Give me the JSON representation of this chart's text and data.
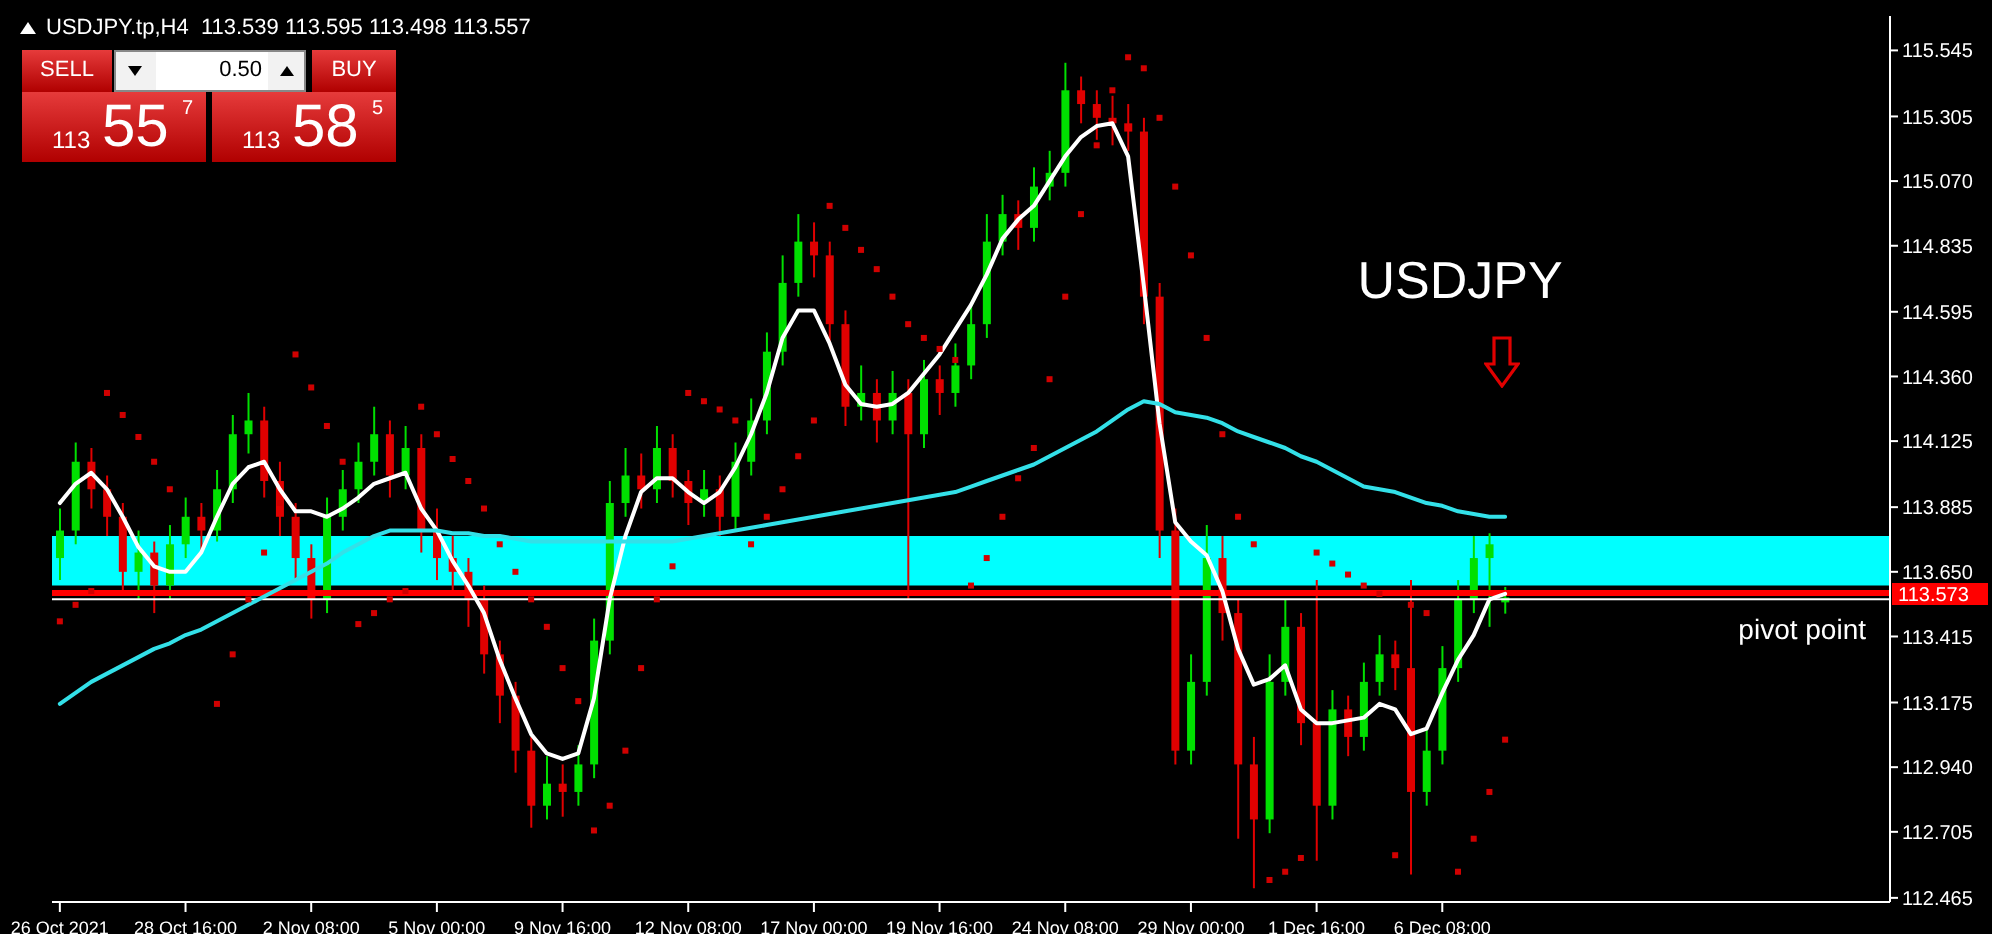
{
  "chart_data": {
    "type": "candlestick",
    "title": "USDJPY.tp,H4  113.539 113.595 113.498 113.557",
    "annotations": [
      "USDJPY",
      "SELL",
      "BUY",
      "0.50",
      "113",
      "55",
      "7",
      "113",
      "58",
      "5"
    ],
    "categories": [
      "26 Oct 2021",
      null,
      null,
      null,
      null,
      null,
      null,
      null,
      "28 Oct 16:00",
      null,
      null,
      null,
      null,
      null,
      null,
      null,
      "2 Nov 08:00",
      null,
      null,
      null,
      null,
      null,
      null,
      null,
      "5 Nov 00:00",
      null,
      null,
      null,
      null,
      null,
      null,
      null,
      "9 Nov 16:00",
      null,
      null,
      null,
      null,
      null,
      null,
      null,
      "12 Nov 08:00",
      null,
      null,
      null,
      null,
      null,
      null,
      null,
      "17 Nov 00:00",
      null,
      null,
      null,
      null,
      null,
      null,
      null,
      "19 Nov 16:00",
      null,
      null,
      null,
      null,
      null,
      null,
      null,
      "24 Nov 08:00",
      null,
      null,
      null,
      null,
      null,
      null,
      null,
      "29 Nov 00:00",
      null,
      null,
      null,
      null,
      null,
      null,
      null,
      "1 Dec 16:00",
      null,
      null,
      null,
      null,
      null,
      null,
      null,
      "6 Dec 08:00",
      null,
      null,
      null,
      null,
      null,
      null,
      null,
      null,
      null,
      null,
      null,
      null,
      null,
      null,
      null,
      null,
      null,
      null,
      null,
      null,
      null,
      null,
      null,
      null,
      null,
      null,
      null,
      null
    ],
    "colors": [
      "#00e000",
      "#00e000",
      "#e00000",
      "#e00000",
      "#e00000",
      "#00e000",
      "#e00000",
      "#00e000",
      "#00e000",
      "#e00000",
      "#00e000",
      "#00e000",
      "#00e000",
      "#e00000",
      "#e00000",
      "#e00000",
      "#e00000",
      "#00e000",
      "#00e000",
      "#00e000",
      "#00e000",
      "#e00000",
      "#00e000",
      "#e00000",
      "#e00000",
      "#e00000",
      "#e00000",
      "#e00000",
      "#e00000",
      "#e00000",
      "#e00000",
      "#00e000",
      "#e00000",
      "#00e000",
      "#00e000",
      "#00e000",
      "#00e000",
      "#e00000",
      "#00e000",
      "#e00000",
      "#e00000",
      "#00e000",
      "#e00000",
      "#00e000",
      "#00e000",
      "#00e000",
      "#00e000",
      "#00e000",
      "#e00000",
      "#e00000",
      "#e00000",
      "#00e000",
      "#e00000",
      "#00e000",
      "#e00000",
      "#00e000",
      "#e00000",
      "#00e000",
      "#00e000",
      "#00e000",
      "#00e000",
      "#e00000",
      "#00e000",
      "#00e000",
      "#00e000",
      "#e00000",
      "#e00000",
      "#e00000",
      "#e00000",
      "#e00000",
      "#e00000",
      "#e00000",
      "#00e000",
      "#00e000",
      "#e00000",
      "#e00000",
      "#e00000",
      "#00e000",
      "#00e000",
      "#e00000",
      "#e00000",
      "#00e000",
      "#e00000",
      "#00e000",
      "#00e000",
      "#e00000",
      "#e00000",
      "#00e000",
      "#00e000",
      "#00e000",
      "#00e000",
      "#00e000",
      "#00e000",
      null,
      null,
      null,
      null,
      null,
      null,
      null,
      null,
      null,
      null,
      null,
      null,
      null,
      null,
      null,
      null,
      null,
      null,
      null,
      null,
      null,
      null,
      null,
      null
    ],
    "ohlc": [
      [
        113.7,
        113.88,
        113.62,
        113.8
      ],
      [
        113.8,
        114.12,
        113.75,
        114.05
      ],
      [
        114.05,
        114.1,
        113.88,
        113.95
      ],
      [
        113.95,
        114.0,
        113.78,
        113.85
      ],
      [
        113.85,
        113.9,
        113.58,
        113.65
      ],
      [
        113.65,
        113.8,
        113.55,
        113.72
      ],
      [
        113.72,
        113.76,
        113.5,
        113.6
      ],
      [
        113.6,
        113.82,
        113.55,
        113.75
      ],
      [
        113.75,
        113.92,
        113.7,
        113.85
      ],
      [
        113.85,
        113.9,
        113.72,
        113.8
      ],
      [
        113.8,
        114.02,
        113.76,
        113.95
      ],
      [
        113.95,
        114.22,
        113.9,
        114.15
      ],
      [
        114.15,
        114.3,
        114.08,
        114.2
      ],
      [
        114.2,
        114.25,
        113.92,
        113.98
      ],
      [
        113.98,
        114.05,
        113.78,
        113.85
      ],
      [
        113.85,
        113.9,
        113.62,
        113.7
      ],
      [
        113.7,
        113.75,
        113.48,
        113.55
      ],
      [
        113.55,
        113.92,
        113.5,
        113.85
      ],
      [
        113.85,
        114.02,
        113.8,
        113.95
      ],
      [
        113.95,
        114.12,
        113.9,
        114.05
      ],
      [
        114.05,
        114.25,
        114.0,
        114.15
      ],
      [
        114.15,
        114.2,
        113.92,
        114.0
      ],
      [
        114.0,
        114.18,
        113.95,
        114.1
      ],
      [
        114.1,
        114.15,
        113.72,
        113.8
      ],
      [
        113.8,
        113.88,
        113.62,
        113.7
      ],
      [
        113.7,
        113.78,
        113.58,
        113.65
      ],
      [
        113.65,
        113.7,
        113.45,
        113.55
      ],
      [
        113.55,
        113.6,
        113.28,
        113.35
      ],
      [
        113.35,
        113.4,
        113.1,
        113.2
      ],
      [
        113.2,
        113.25,
        112.92,
        113.0
      ],
      [
        113.0,
        113.05,
        112.72,
        112.8
      ],
      [
        112.8,
        112.98,
        112.75,
        112.88
      ],
      [
        112.88,
        112.95,
        112.76,
        112.85
      ],
      [
        112.85,
        113.02,
        112.8,
        112.95
      ],
      [
        112.95,
        113.48,
        112.9,
        113.4
      ],
      [
        113.4,
        113.98,
        113.35,
        113.9
      ],
      [
        113.9,
        114.1,
        113.85,
        114.0
      ],
      [
        114.0,
        114.08,
        113.88,
        113.95
      ],
      [
        113.95,
        114.18,
        113.9,
        114.1
      ],
      [
        114.1,
        114.15,
        113.92,
        113.98
      ],
      [
        113.98,
        114.02,
        113.82,
        113.9
      ],
      [
        113.9,
        114.02,
        113.85,
        113.95
      ],
      [
        113.95,
        114.0,
        113.78,
        113.85
      ],
      [
        113.85,
        114.12,
        113.8,
        114.05
      ],
      [
        114.05,
        114.28,
        114.0,
        114.2
      ],
      [
        114.2,
        114.52,
        114.15,
        114.45
      ],
      [
        114.45,
        114.8,
        114.4,
        114.7
      ],
      [
        114.7,
        114.95,
        114.65,
        114.85
      ],
      [
        114.85,
        114.92,
        114.72,
        114.8
      ],
      [
        114.8,
        114.85,
        114.48,
        114.55
      ],
      [
        114.55,
        114.6,
        114.18,
        114.25
      ],
      [
        114.25,
        114.4,
        114.2,
        114.3
      ],
      [
        114.3,
        114.35,
        114.12,
        114.2
      ],
      [
        114.2,
        114.38,
        114.15,
        114.3
      ],
      [
        114.3,
        114.35,
        113.55,
        114.15
      ],
      [
        114.15,
        114.42,
        114.1,
        114.35
      ],
      [
        114.35,
        114.4,
        114.22,
        114.3
      ],
      [
        114.3,
        114.48,
        114.25,
        114.4
      ],
      [
        114.4,
        114.62,
        114.35,
        114.55
      ],
      [
        114.55,
        114.95,
        114.5,
        114.85
      ],
      [
        114.85,
        115.02,
        114.8,
        114.95
      ],
      [
        114.95,
        115.0,
        114.82,
        114.9
      ],
      [
        114.9,
        115.12,
        114.85,
        115.05
      ],
      [
        115.05,
        115.18,
        115.0,
        115.1
      ],
      [
        115.1,
        115.5,
        115.05,
        115.4
      ],
      [
        115.4,
        115.45,
        115.28,
        115.35
      ],
      [
        115.35,
        115.4,
        115.22,
        115.3
      ],
      [
        115.3,
        115.38,
        115.2,
        115.28
      ],
      [
        115.28,
        115.35,
        115.18,
        115.25
      ],
      [
        115.25,
        115.3,
        114.55,
        114.65
      ],
      [
        114.65,
        114.7,
        113.7,
        113.8
      ],
      [
        113.8,
        113.88,
        112.95,
        113.0
      ],
      [
        113.0,
        113.35,
        112.95,
        113.25
      ],
      [
        113.25,
        113.82,
        113.2,
        113.7
      ],
      [
        113.7,
        113.78,
        113.4,
        113.5
      ],
      [
        113.5,
        113.55,
        112.68,
        112.95
      ],
      [
        112.95,
        113.05,
        112.5,
        112.75
      ],
      [
        112.75,
        113.35,
        112.7,
        113.25
      ],
      [
        113.25,
        113.55,
        113.2,
        113.45
      ],
      [
        113.45,
        113.5,
        113.02,
        113.1
      ],
      [
        113.1,
        113.62,
        112.6,
        112.8
      ],
      [
        112.8,
        113.22,
        112.75,
        113.15
      ],
      [
        113.15,
        113.2,
        112.98,
        113.05
      ],
      [
        113.05,
        113.32,
        113.0,
        113.25
      ],
      [
        113.25,
        113.42,
        113.2,
        113.35
      ],
      [
        113.35,
        113.4,
        113.22,
        113.3
      ],
      [
        113.3,
        113.62,
        112.55,
        112.85
      ],
      [
        112.85,
        113.08,
        112.8,
        113.0
      ],
      [
        113.0,
        113.38,
        112.95,
        113.3
      ],
      [
        113.3,
        113.62,
        113.25,
        113.55
      ],
      [
        113.55,
        113.78,
        113.5,
        113.7
      ],
      [
        113.7,
        113.79,
        113.45,
        113.75
      ],
      [
        113.539,
        113.595,
        113.498,
        113.557
      ],
      null,
      null,
      null,
      null,
      null,
      null,
      null,
      null,
      null,
      null,
      null,
      null,
      null,
      null,
      null,
      null,
      null,
      null,
      null,
      null,
      null,
      null,
      null,
      null
    ],
    "series": [
      {
        "type": "line",
        "color": "#ffffff",
        "values": [
          113.9,
          113.97,
          114.01,
          113.95,
          113.85,
          113.74,
          113.67,
          113.65,
          113.65,
          113.72,
          113.85,
          113.97,
          114.03,
          114.05,
          113.95,
          113.87,
          113.87,
          113.85,
          113.88,
          113.92,
          113.97,
          113.99,
          114.01,
          113.88,
          113.8,
          113.69,
          113.6,
          113.5,
          113.33,
          113.19,
          113.06,
          112.99,
          112.97,
          112.99,
          113.19,
          113.55,
          113.78,
          113.94,
          113.99,
          113.99,
          113.94,
          113.9,
          113.94,
          114.03,
          114.15,
          114.3,
          114.5,
          114.6,
          114.6,
          114.48,
          114.33,
          114.26,
          114.25,
          114.26,
          114.3,
          114.37,
          114.44,
          114.53,
          114.62,
          114.73,
          114.86,
          114.93,
          114.98,
          115.07,
          115.16,
          115.23,
          115.27,
          115.28,
          115.16,
          114.69,
          114.19,
          113.83,
          113.76,
          113.71,
          113.58,
          113.37,
          113.24,
          113.26,
          113.31,
          113.15,
          113.1,
          113.1,
          113.11,
          113.12,
          113.17,
          113.15,
          113.06,
          113.08,
          113.21,
          113.33,
          113.42,
          113.55,
          113.57,
          null,
          null,
          null,
          null,
          null,
          null,
          null,
          null,
          null,
          null,
          null,
          null,
          null,
          null,
          null,
          null,
          null,
          null,
          null,
          null,
          null,
          null,
          null,
          null
        ]
      },
      {
        "type": "line",
        "color": "#33e0e8",
        "values": [
          113.17,
          113.21,
          113.25,
          113.28,
          113.31,
          113.34,
          113.37,
          113.39,
          113.42,
          113.44,
          113.47,
          113.5,
          113.53,
          113.56,
          113.59,
          113.62,
          113.65,
          113.68,
          113.72,
          113.75,
          113.78,
          113.8,
          113.8,
          113.8,
          113.8,
          113.79,
          113.79,
          113.78,
          113.78,
          113.77,
          113.76,
          113.76,
          113.76,
          113.76,
          113.76,
          113.76,
          113.76,
          113.76,
          113.76,
          113.76,
          113.77,
          113.78,
          113.79,
          113.8,
          113.81,
          113.82,
          113.83,
          113.84,
          113.85,
          113.86,
          113.87,
          113.88,
          113.89,
          113.9,
          113.91,
          113.92,
          113.93,
          113.94,
          113.96,
          113.98,
          114.0,
          114.02,
          114.04,
          114.07,
          114.1,
          114.13,
          114.16,
          114.2,
          114.24,
          114.27,
          114.26,
          114.23,
          114.22,
          114.21,
          114.19,
          114.16,
          114.14,
          114.12,
          114.1,
          114.07,
          114.05,
          114.02,
          113.99,
          113.96,
          113.95,
          113.94,
          113.92,
          113.9,
          113.89,
          113.87,
          113.86,
          113.85,
          113.85,
          null,
          null,
          null,
          null,
          null,
          null,
          null,
          null,
          null,
          null,
          null,
          null,
          null,
          null,
          null,
          null,
          null,
          null,
          null,
          null,
          null,
          null,
          null,
          null
        ]
      },
      {
        "type": "scatter",
        "color": "#d00000",
        "values": [
          113.47,
          113.53,
          113.58,
          114.3,
          114.22,
          114.14,
          114.05,
          113.95,
          null,
          null,
          113.17,
          113.35,
          113.55,
          113.72,
          113.9,
          114.44,
          114.32,
          114.18,
          114.05,
          113.46,
          113.5,
          113.55,
          113.58,
          114.25,
          114.15,
          114.06,
          113.98,
          113.88,
          113.75,
          113.65,
          113.55,
          113.45,
          113.3,
          113.18,
          112.71,
          112.8,
          113.0,
          113.3,
          113.55,
          113.67,
          114.3,
          114.27,
          114.24,
          114.2,
          113.75,
          113.85,
          113.95,
          114.07,
          114.2,
          114.98,
          114.9,
          114.82,
          114.75,
          114.65,
          114.55,
          114.5,
          114.46,
          114.42,
          113.6,
          113.7,
          113.85,
          113.99,
          114.1,
          114.35,
          114.65,
          114.95,
          115.2,
          115.4,
          115.52,
          115.48,
          115.3,
          115.05,
          114.8,
          114.5,
          114.15,
          113.85,
          113.75,
          112.53,
          112.56,
          112.61,
          113.72,
          113.68,
          113.64,
          113.6,
          113.57,
          112.62,
          113.53,
          113.5,
          null,
          112.56,
          112.68,
          112.85,
          113.04,
          null,
          null,
          null,
          null,
          null,
          null,
          null,
          null,
          null,
          null,
          null,
          null,
          null,
          null,
          null,
          null,
          null,
          null,
          null,
          null,
          null,
          null,
          null,
          null
        ]
      }
    ],
    "bands": [
      {
        "axis": "y",
        "from": 113.6,
        "to": 113.78,
        "color": "#00ffff"
      }
    ],
    "ref_lines": [
      {
        "axis": "y",
        "value": 113.573,
        "label": "113.573",
        "color": "#ff0000"
      },
      {
        "axis": "y",
        "value": 113.55,
        "label": "pivot point",
        "color": "#ffffff"
      }
    ],
    "ylim": [
      112.45,
      115.67
    ],
    "yticks": [
      115.545,
      115.305,
      {
        "value": 115.07,
        "label": "115.070"
      },
      114.835,
      114.595,
      {
        "value": 114.36,
        "label": "114.360"
      },
      114.125,
      113.885,
      {
        "value": 113.65,
        "label": "113.650"
      },
      113.415,
      113.175,
      {
        "value": 112.94,
        "label": "112.940"
      },
      112.705,
      112.465
    ],
    "grid": false,
    "legend": false
  }
}
